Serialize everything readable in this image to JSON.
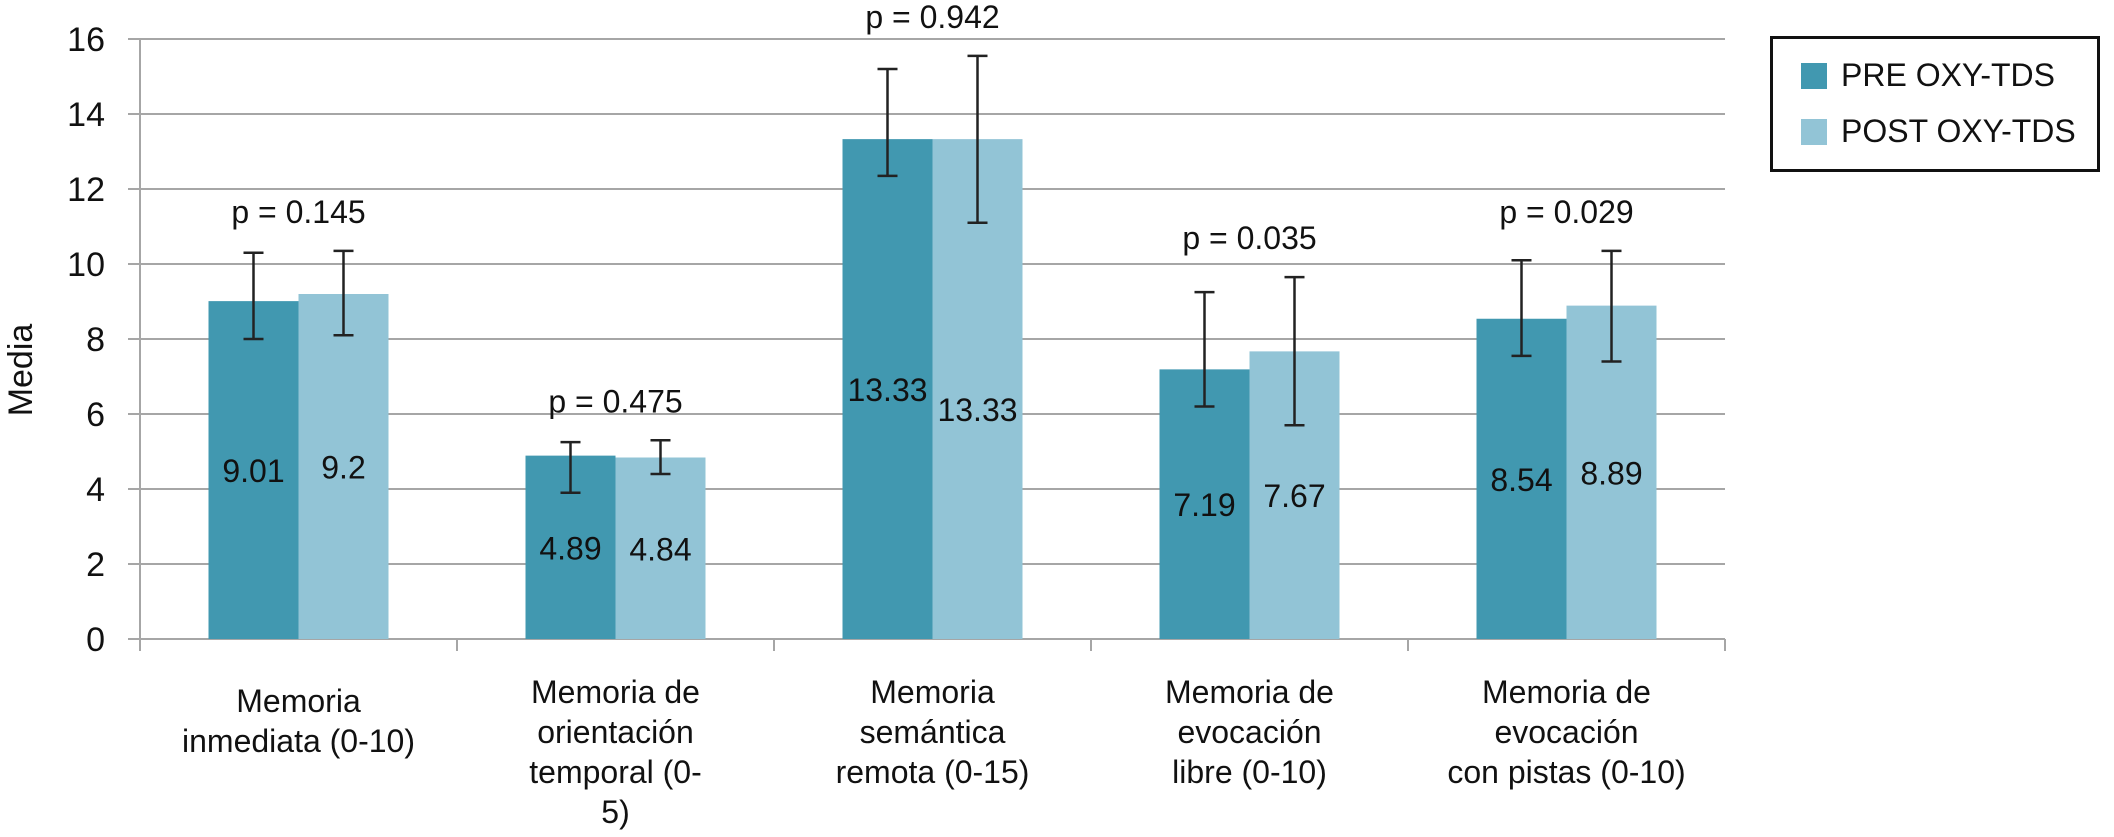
{
  "chart_data": {
    "type": "bar",
    "categories": [
      [
        "Memoria",
        "inmediata (0-10)"
      ],
      [
        "Memoria de",
        "orientación",
        "temporal (0-",
        "5)"
      ],
      [
        "Memoria",
        "semántica",
        "remota (0-15)"
      ],
      [
        "Memoria de",
        "evocación",
        "libre (0-10)"
      ],
      [
        "Memoria de",
        "evocación",
        "con pistas (0-10)"
      ]
    ],
    "series": [
      {
        "name": "PRE OXY-TDS",
        "color": "#4198b0",
        "values": [
          9.01,
          4.89,
          13.33,
          7.19,
          8.54
        ],
        "labels": [
          "9.01",
          "4.89",
          "13.33",
          "7.19",
          "8.54"
        ],
        "err_low": [
          8.0,
          3.9,
          12.35,
          6.2,
          7.55
        ],
        "err_high": [
          10.3,
          5.25,
          15.2,
          9.25,
          10.1
        ]
      },
      {
        "name": "POST OXY-TDS",
        "color": "#92c4d6",
        "values": [
          9.2,
          4.84,
          13.33,
          7.67,
          8.89
        ],
        "labels": [
          "9.2",
          "4.84",
          "13.33",
          "7.67",
          "8.89"
        ],
        "err_low": [
          8.1,
          4.4,
          11.1,
          5.7,
          7.4
        ],
        "err_high": [
          10.35,
          5.3,
          15.55,
          9.65,
          10.35
        ]
      }
    ],
    "p_values": [
      "p = 0.145",
      "p = 0.475",
      "p = 0.942",
      "p = 0.035",
      "p = 0.029"
    ],
    "ylabel": "Media",
    "ylim": [
      0,
      16
    ],
    "yticks": [
      "0",
      "2",
      "4",
      "6",
      "8",
      "10",
      "12",
      "14",
      "16"
    ],
    "grid": true,
    "legend_position": "top-right"
  }
}
